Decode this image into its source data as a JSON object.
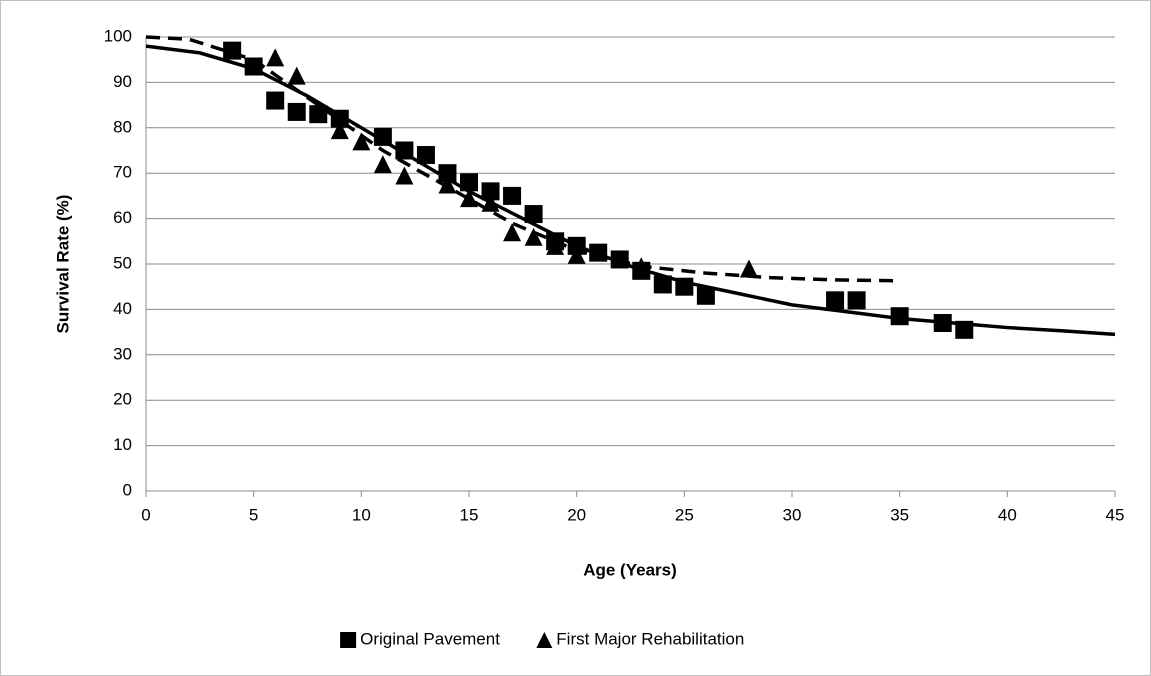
{
  "chart_data": {
    "type": "scatter",
    "x_label": "Age (Years)",
    "y_label": "Survival Rate (%)",
    "xlim": [
      0,
      45
    ],
    "xticks": [
      0,
      5,
      10,
      15,
      20,
      25,
      30,
      35,
      40,
      45
    ],
    "ylim": [
      0,
      100
    ],
    "yticks": [
      0,
      10,
      20,
      30,
      40,
      50,
      60,
      70,
      80,
      90,
      100
    ],
    "grid": true,
    "legend": "bottom",
    "series": [
      {
        "name": "Original Pavement",
        "color": "#000000",
        "marker": "square",
        "x": [
          4,
          5,
          6,
          7,
          8,
          9,
          11,
          12,
          13,
          14,
          15,
          16,
          17,
          18,
          19,
          20,
          21,
          22,
          23,
          24,
          25,
          26,
          32,
          33,
          35,
          37,
          38
        ],
        "values": [
          97,
          93.5,
          86,
          83.5,
          83,
          82,
          78,
          75,
          74,
          70,
          68,
          66,
          65,
          61,
          55,
          54,
          52.5,
          51,
          48.5,
          45.5,
          45,
          43,
          42,
          42,
          38.5,
          37,
          35.5
        ]
      },
      {
        "name": "First Major Rehabilitation",
        "color": "#000000",
        "marker": "triangle",
        "x": [
          6,
          7,
          8,
          9,
          10,
          11,
          12,
          14,
          15,
          16,
          17,
          18,
          19,
          20,
          23,
          28
        ],
        "values": [
          95.5,
          91.5,
          84,
          79.5,
          77,
          72,
          69.5,
          67.5,
          64.5,
          63.5,
          57,
          56,
          54,
          52,
          49.5,
          49
        ]
      }
    ],
    "fits": [
      {
        "color": "#000000",
        "dash": false,
        "x": [
          0,
          2.5,
          5,
          7.5,
          10,
          12.5,
          15,
          17.5,
          20,
          22.5,
          25,
          27.5,
          30,
          32.5,
          35,
          37.5,
          40,
          42.5,
          45
        ],
        "values": [
          98,
          96.5,
          93,
          87,
          80,
          73,
          66,
          60,
          54,
          49.5,
          46,
          43.5,
          41,
          39.5,
          38,
          37,
          36,
          35.3,
          34.5
        ]
      },
      {
        "color": "#000000",
        "dash": true,
        "x": [
          0,
          2,
          5,
          8,
          11,
          14,
          17,
          20,
          23,
          26,
          29,
          32,
          35
        ],
        "values": [
          100,
          99.5,
          95,
          85,
          75,
          67,
          59,
          53,
          49.5,
          48,
          47,
          46.5,
          46.3
        ]
      }
    ]
  }
}
